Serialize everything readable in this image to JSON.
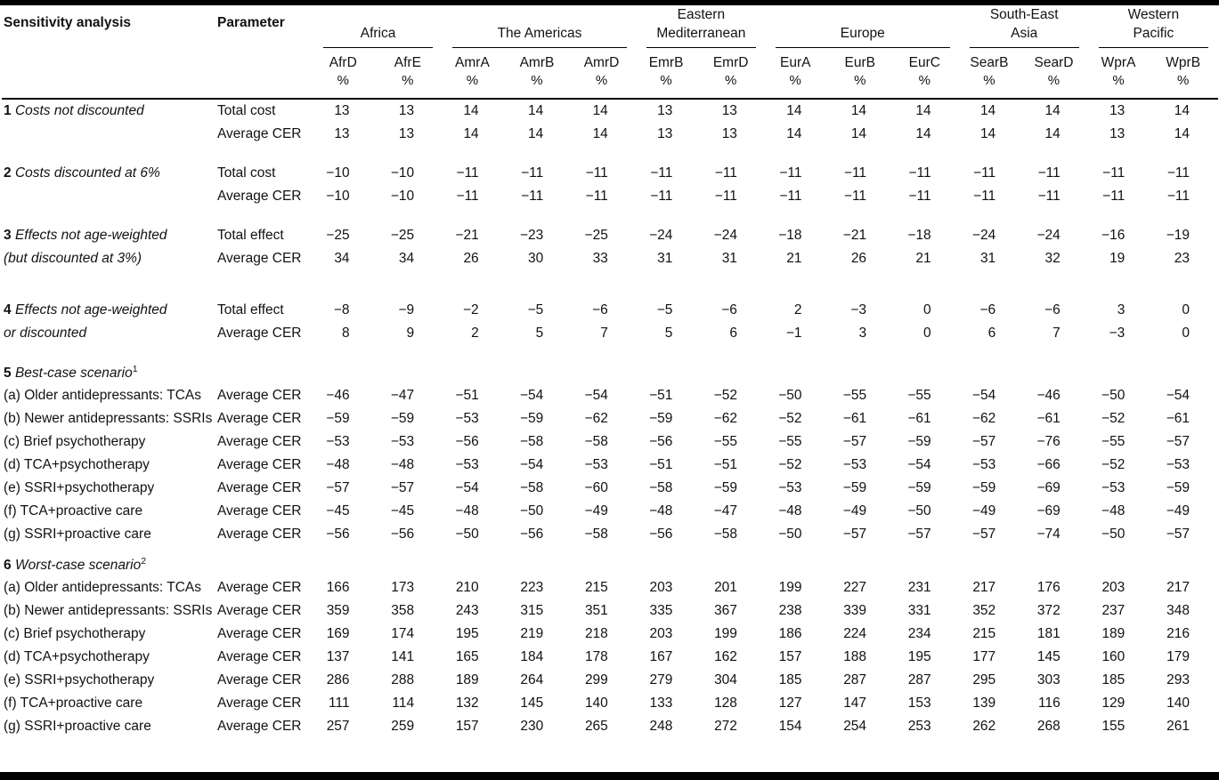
{
  "page": {
    "background": "#ffffff",
    "text_color": "#121212",
    "rule_color": "#000000"
  },
  "table": {
    "corner_headers": {
      "sensitivity_analysis": "Sensitivity analysis",
      "parameter": "Parameter"
    },
    "unit_label": "%",
    "region_groups": [
      {
        "name": "Africa",
        "label_lines": [
          "Africa"
        ],
        "columns": [
          "AfrD",
          "AfrE"
        ]
      },
      {
        "name": "The Americas",
        "label_lines": [
          "The Americas"
        ],
        "columns": [
          "AmrA",
          "AmrB",
          "AmrD"
        ]
      },
      {
        "name": "Eastern Mediterranean",
        "label_lines": [
          "Eastern",
          "Mediterranean"
        ],
        "columns": [
          "EmrB",
          "EmrD"
        ]
      },
      {
        "name": "Europe",
        "label_lines": [
          "Europe"
        ],
        "columns": [
          "EurA",
          "EurB",
          "EurC"
        ]
      },
      {
        "name": "South-East Asia",
        "label_lines": [
          "South-East",
          "Asia"
        ],
        "columns": [
          "SearB",
          "SearD"
        ]
      },
      {
        "name": "Western Pacific",
        "label_lines": [
          "Western",
          "Pacific"
        ],
        "columns": [
          "WprA",
          "WprB"
        ]
      }
    ],
    "sections": [
      {
        "heading": null,
        "rows": [
          {
            "num": "1",
            "label": "Costs not discounted",
            "label_style": "title",
            "parameter": "Total cost",
            "values": [
              13,
              13,
              14,
              14,
              14,
              13,
              13,
              14,
              14,
              14,
              14,
              14,
              13,
              14
            ]
          },
          {
            "num": "",
            "label": "",
            "label_style": "title",
            "parameter": "Average CER",
            "values": [
              13,
              13,
              14,
              14,
              14,
              13,
              13,
              14,
              14,
              14,
              14,
              14,
              13,
              14
            ]
          }
        ]
      },
      {
        "heading": null,
        "rows": [
          {
            "num": "2",
            "label": "Costs discounted at 6%",
            "label_style": "title",
            "parameter": "Total cost",
            "values": [
              -10,
              -10,
              -11,
              -11,
              -11,
              -11,
              -11,
              -11,
              -11,
              -11,
              -11,
              -11,
              -11,
              -11
            ]
          },
          {
            "num": "",
            "label": "",
            "label_style": "title",
            "parameter": "Average CER",
            "values": [
              -10,
              -10,
              -11,
              -11,
              -11,
              -11,
              -11,
              -11,
              -11,
              -11,
              -11,
              -11,
              -11,
              -11
            ]
          }
        ]
      },
      {
        "heading": null,
        "rows": [
          {
            "num": "3",
            "label": "Effects not age-weighted",
            "label_style": "title",
            "parameter": "Total effect",
            "values": [
              -25,
              -25,
              -21,
              -23,
              -25,
              -24,
              -24,
              -18,
              -21,
              -18,
              -24,
              -24,
              -16,
              -19
            ]
          },
          {
            "num": "",
            "label": "(but discounted at 3%)",
            "label_style": "title",
            "parameter": "Average CER",
            "values": [
              34,
              34,
              26,
              30,
              33,
              31,
              31,
              21,
              26,
              21,
              31,
              32,
              19,
              23
            ]
          }
        ]
      },
      {
        "heading": null,
        "rows": [
          {
            "num": "4",
            "label": "Effects not age-weighted",
            "label_style": "title",
            "parameter": "Total effect",
            "values": [
              -8,
              -9,
              -2,
              -5,
              -6,
              -5,
              -6,
              2,
              -3,
              0,
              -6,
              -6,
              3,
              0
            ]
          },
          {
            "num": "",
            "label": "or discounted",
            "label_style": "title",
            "parameter": "Average CER",
            "values": [
              8,
              9,
              2,
              5,
              7,
              5,
              6,
              -1,
              3,
              0,
              6,
              7,
              -3,
              0
            ]
          }
        ]
      },
      {
        "heading": {
          "num": "5",
          "text": "Best-case scenario",
          "superscript": "1"
        },
        "rows": [
          {
            "num": "(a)",
            "label": "Older antidepressants: TCAs",
            "label_style": "item",
            "parameter": "Average CER",
            "values": [
              -46,
              -47,
              -51,
              -54,
              -54,
              -51,
              -52,
              -50,
              -55,
              -55,
              -54,
              -46,
              -50,
              -54
            ]
          },
          {
            "num": "(b)",
            "label": "Newer antidepressants: SSRIs",
            "label_style": "item",
            "parameter": "Average CER",
            "values": [
              -59,
              -59,
              -53,
              -59,
              -62,
              -59,
              -62,
              -52,
              -61,
              -61,
              -62,
              -61,
              -52,
              -61
            ]
          },
          {
            "num": "(c)",
            "label": "Brief psychotherapy",
            "label_style": "item",
            "parameter": "Average CER",
            "values": [
              -53,
              -53,
              -56,
              -58,
              -58,
              -56,
              -55,
              -55,
              -57,
              -59,
              -57,
              -76,
              -55,
              -57
            ]
          },
          {
            "num": "(d)",
            "label": "TCA+psychotherapy",
            "label_style": "item",
            "parameter": "Average CER",
            "values": [
              -48,
              -48,
              -53,
              -54,
              -53,
              -51,
              -51,
              -52,
              -53,
              -54,
              -53,
              -66,
              -52,
              -53
            ]
          },
          {
            "num": "(e)",
            "label": "SSRI+psychotherapy",
            "label_style": "item",
            "parameter": "Average CER",
            "values": [
              -57,
              -57,
              -54,
              -58,
              -60,
              -58,
              -59,
              -53,
              -59,
              -59,
              -59,
              -69,
              -53,
              -59
            ]
          },
          {
            "num": "(f)",
            "label": "TCA+proactive care",
            "label_style": "item",
            "parameter": "Average CER",
            "values": [
              -45,
              -45,
              -48,
              -50,
              -49,
              -48,
              -47,
              -48,
              -49,
              -50,
              -49,
              -69,
              -48,
              -49
            ]
          },
          {
            "num": "(g)",
            "label": "SSRI+proactive care",
            "label_style": "item",
            "parameter": "Average CER",
            "values": [
              -56,
              -56,
              -50,
              -56,
              -58,
              -56,
              -58,
              -50,
              -57,
              -57,
              -57,
              -74,
              -50,
              -57
            ]
          }
        ]
      },
      {
        "heading": {
          "num": "6",
          "text": "Worst-case scenario",
          "superscript": "2"
        },
        "rows": [
          {
            "num": "(a)",
            "label": "Older antidepressants: TCAs",
            "label_style": "item",
            "parameter": "Average CER",
            "values": [
              166,
              173,
              210,
              223,
              215,
              203,
              201,
              199,
              227,
              231,
              217,
              176,
              203,
              217
            ]
          },
          {
            "num": "(b)",
            "label": "Newer antidepressants: SSRIs",
            "label_style": "item",
            "parameter": "Average CER",
            "values": [
              359,
              358,
              243,
              315,
              351,
              335,
              367,
              238,
              339,
              331,
              352,
              372,
              237,
              348
            ]
          },
          {
            "num": "(c)",
            "label": "Brief psychotherapy",
            "label_style": "item",
            "parameter": "Average CER",
            "values": [
              169,
              174,
              195,
              219,
              218,
              203,
              199,
              186,
              224,
              234,
              215,
              181,
              189,
              216
            ]
          },
          {
            "num": "(d)",
            "label": "TCA+psychotherapy",
            "label_style": "item",
            "parameter": "Average CER",
            "values": [
              137,
              141,
              165,
              184,
              178,
              167,
              162,
              157,
              188,
              195,
              177,
              145,
              160,
              179
            ]
          },
          {
            "num": "(e)",
            "label": "SSRI+psychotherapy",
            "label_style": "item",
            "parameter": "Average CER",
            "values": [
              286,
              288,
              189,
              264,
              299,
              279,
              304,
              185,
              287,
              287,
              295,
              303,
              185,
              293
            ]
          },
          {
            "num": "(f)",
            "label": "TCA+proactive care",
            "label_style": "item",
            "parameter": "Average CER",
            "values": [
              111,
              114,
              132,
              145,
              140,
              133,
              128,
              127,
              147,
              153,
              139,
              116,
              129,
              140
            ]
          },
          {
            "num": "(g)",
            "label": "SSRI+proactive care",
            "label_style": "item",
            "parameter": "Average CER",
            "values": [
              257,
              259,
              157,
              230,
              265,
              248,
              272,
              154,
              254,
              253,
              262,
              268,
              155,
              261
            ]
          }
        ]
      }
    ]
  }
}
